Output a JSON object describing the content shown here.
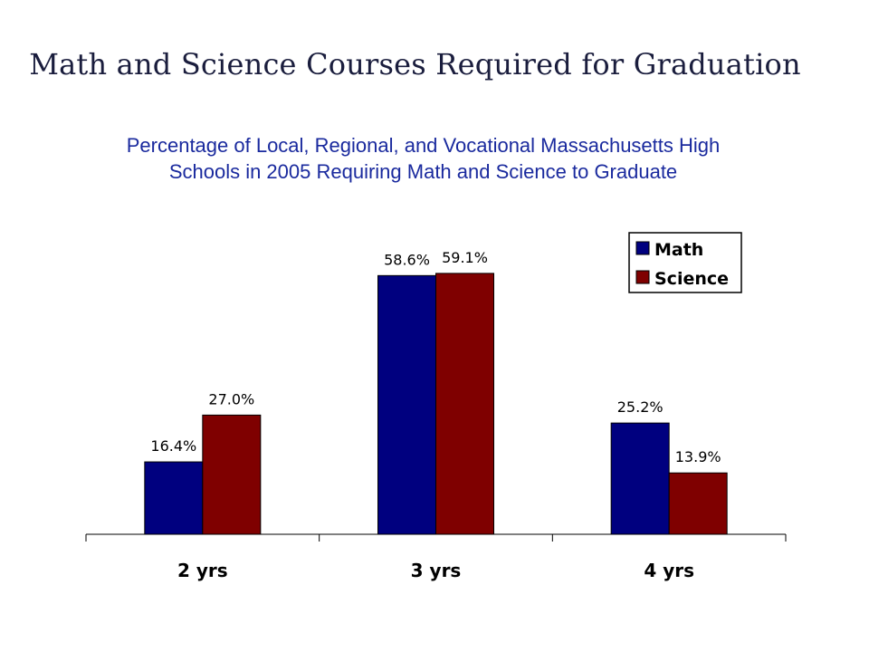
{
  "header": {
    "title": "Math and Science Courses Required for Graduation",
    "subtitle_lines": [
      "Percentage of Local, Regional, and Vocational Massachusetts High",
      "Schools in 2005 Requiring Math and Science to Graduate"
    ]
  },
  "chart_data": {
    "type": "bar",
    "title": "",
    "categories": [
      "2 yrs",
      "3 yrs",
      "4 yrs"
    ],
    "series": [
      {
        "name": "Math",
        "values": [
          16.4,
          58.6,
          25.2
        ],
        "labels": [
          "16.4%",
          "58.6%",
          "25.2%"
        ],
        "color": "#00007f"
      },
      {
        "name": "Science",
        "values": [
          27.0,
          59.1,
          13.9
        ],
        "labels": [
          "27.0%",
          "59.1%",
          "13.9%"
        ],
        "color": "#7f0000"
      }
    ],
    "ylim": [
      0,
      70
    ],
    "grid": false,
    "legend_position": "top-right",
    "xlabel": "",
    "ylabel": ""
  }
}
